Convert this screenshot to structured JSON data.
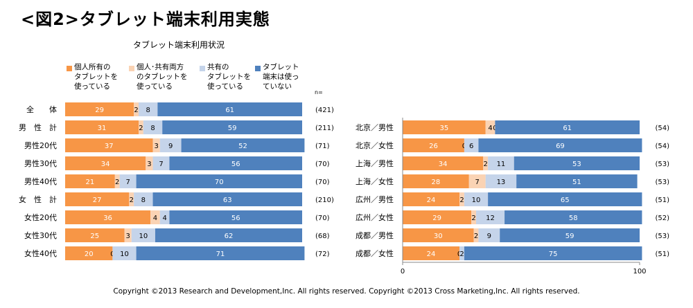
{
  "heading": "<図2>タブレット端末利用実態",
  "chart_title": "タブレット端末利用状況",
  "n_label": "n=",
  "copyright": "Copyright ©2013 Research and Development,Inc. All rights reserved. Copyright ©2013 Cross Marketing,Inc. All rights reserved.",
  "colors": {
    "personal": "#F79646",
    "both": "#FAD3B4",
    "shared": "#C5D4EA",
    "none": "#4F81BD"
  },
  "chart_data": [
    {
      "type": "bar",
      "orientation": "horizontal",
      "stacked": true,
      "title": "タブレット端末利用状況",
      "categories": [
        "全　　体",
        "男　性　計",
        "男性20代",
        "男性30代",
        "男性40代",
        "女　性　計",
        "女性20代",
        "女性30代",
        "女性40代"
      ],
      "series": [
        {
          "name": "個人所有の\nタブレットを\n使っている",
          "values": [
            29,
            31,
            37,
            34,
            21,
            27,
            36,
            25,
            20
          ]
        },
        {
          "name": "個人･共有両方\nのタブレットを\n使っている",
          "values": [
            2,
            2,
            3,
            3,
            2,
            2,
            4,
            3,
            0
          ]
        },
        {
          "name": "共有の\nタブレットを\n使っている",
          "values": [
            8,
            8,
            9,
            7,
            7,
            8,
            4,
            10,
            10
          ]
        },
        {
          "name": "タブレット\n端末は使っ\nていない",
          "values": [
            61,
            59,
            52,
            56,
            70,
            63,
            56,
            62,
            71
          ]
        }
      ],
      "n": [
        "(421)",
        "(211)",
        "(71)",
        "(70)",
        "(70)",
        "(210)",
        "(70)",
        "(68)",
        "(72)"
      ],
      "xlim": [
        0,
        100
      ],
      "legend": "top"
    },
    {
      "type": "bar",
      "orientation": "horizontal",
      "stacked": true,
      "categories": [
        "北京／男性",
        "北京／女性",
        "上海／男性",
        "上海／女性",
        "広州／男性",
        "広州／女性",
        "成都／男性",
        "成都／女性"
      ],
      "series": [
        {
          "name": "個人所有の\nタブレットを\n使っている",
          "values": [
            35,
            26,
            34,
            28,
            24,
            29,
            30,
            24
          ]
        },
        {
          "name": "個人･共有両方\nのタブレットを\n使っている",
          "values": [
            4,
            0,
            2,
            7,
            2,
            2,
            2,
            0
          ]
        },
        {
          "name": "共有の\nタブレットを\n使っている",
          "values": [
            0,
            6,
            11,
            13,
            10,
            12,
            9,
            2
          ]
        },
        {
          "name": "タブレット\n端末は使っ\nていない",
          "values": [
            61,
            69,
            53,
            51,
            65,
            58,
            59,
            75
          ]
        }
      ],
      "n": [
        "(54)",
        "(54)",
        "(53)",
        "(53)",
        "(51)",
        "(52)",
        "(53)",
        "(51)"
      ],
      "xlim": [
        0,
        100
      ],
      "xticks": [
        "0",
        "100"
      ]
    }
  ]
}
